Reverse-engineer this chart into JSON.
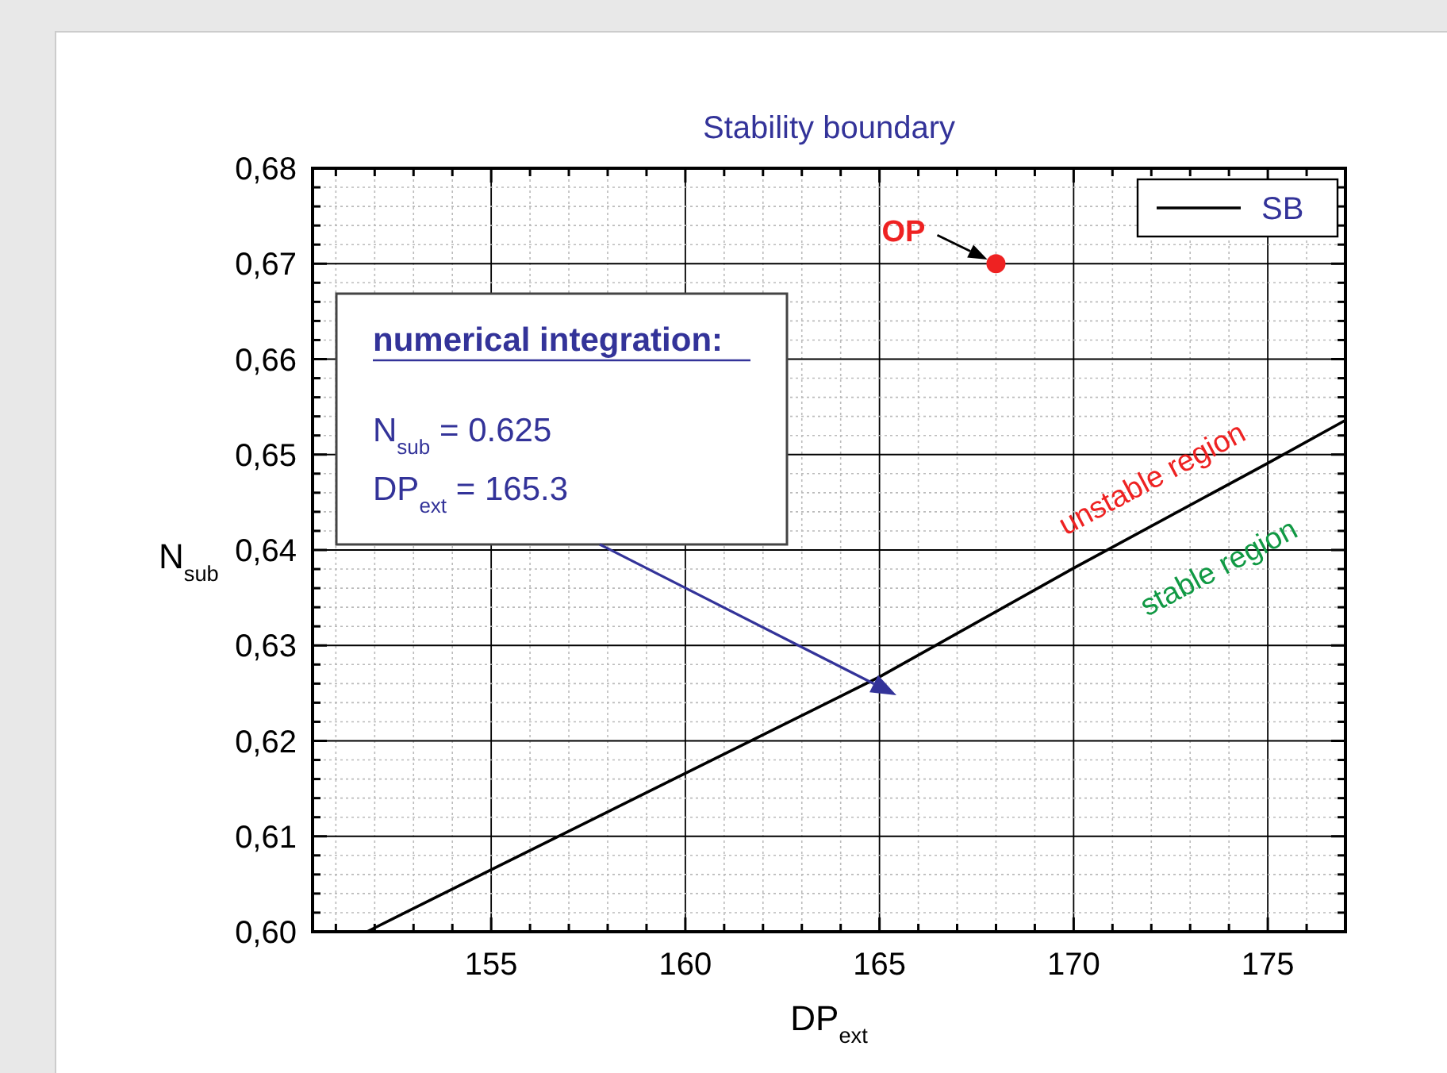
{
  "chart_data": {
    "type": "line",
    "title": "Stability boundary",
    "xlabel": "DP$_{ext}$",
    "ylabel": "N$_{sub}$",
    "xlim": [
      150.4,
      177
    ],
    "ylim": [
      0.6,
      0.68
    ],
    "xticks": [
      {
        "value": 151,
        "label": null
      },
      {
        "value": 152,
        "label": null
      },
      {
        "value": 153,
        "label": null
      },
      {
        "value": 154,
        "label": null
      },
      155,
      {
        "value": 156,
        "label": null
      },
      {
        "value": 157,
        "label": null
      },
      {
        "value": 158,
        "label": null
      },
      {
        "value": 159,
        "label": null
      },
      160,
      {
        "value": 161,
        "label": null
      },
      {
        "value": 162,
        "label": null
      },
      {
        "value": 163,
        "label": null
      },
      {
        "value": 164,
        "label": null
      },
      165,
      {
        "value": 166,
        "label": null
      },
      {
        "value": 167,
        "label": null
      },
      {
        "value": 168,
        "label": null
      },
      {
        "value": 169,
        "label": null
      },
      170,
      {
        "value": 171,
        "label": null
      },
      {
        "value": 172,
        "label": null
      },
      {
        "value": 173,
        "label": null
      },
      {
        "value": 174,
        "label": null
      },
      175,
      {
        "value": 176,
        "label": null
      },
      {
        "value": 177,
        "label": null
      }
    ],
    "yticks": [
      {
        "value": 0.6,
        "label": "0,60"
      },
      {
        "value": 0.602,
        "label": null
      },
      {
        "value": 0.604,
        "label": null
      },
      {
        "value": 0.606,
        "label": null
      },
      {
        "value": 0.608,
        "label": null
      },
      {
        "value": 0.61,
        "label": "0,61"
      },
      {
        "value": 0.612,
        "label": null
      },
      {
        "value": 0.614,
        "label": null
      },
      {
        "value": 0.616,
        "label": null
      },
      {
        "value": 0.618,
        "label": null
      },
      {
        "value": 0.62,
        "label": "0,62"
      },
      {
        "value": 0.622,
        "label": null
      },
      {
        "value": 0.624,
        "label": null
      },
      {
        "value": 0.626,
        "label": null
      },
      {
        "value": 0.628,
        "label": null
      },
      {
        "value": 0.63,
        "label": "0,63"
      },
      {
        "value": 0.632,
        "label": null
      },
      {
        "value": 0.634,
        "label": null
      },
      {
        "value": 0.636,
        "label": null
      },
      {
        "value": 0.638,
        "label": null
      },
      {
        "value": 0.64,
        "label": "0,64"
      },
      {
        "value": 0.642,
        "label": null
      },
      {
        "value": 0.644,
        "label": null
      },
      {
        "value": 0.646,
        "label": null
      },
      {
        "value": 0.648,
        "label": null
      },
      {
        "value": 0.65,
        "label": "0,65"
      },
      {
        "value": 0.652,
        "label": null
      },
      {
        "value": 0.654,
        "label": null
      },
      {
        "value": 0.656,
        "label": null
      },
      {
        "value": 0.658,
        "label": null
      },
      {
        "value": 0.66,
        "label": "0,66"
      },
      {
        "value": 0.662,
        "label": null
      },
      {
        "value": 0.664,
        "label": null
      },
      {
        "value": 0.666,
        "label": null
      },
      {
        "value": 0.668,
        "label": null
      },
      {
        "value": 0.67,
        "label": "0,67"
      },
      {
        "value": 0.672,
        "label": null
      },
      {
        "value": 0.674,
        "label": null
      },
      {
        "value": 0.676,
        "label": null
      },
      {
        "value": 0.678,
        "label": null
      },
      {
        "value": 0.68,
        "label": "0,68"
      }
    ],
    "grid": true,
    "legend": "top right",
    "series": [
      {
        "name": "SB",
        "color": "#000000",
        "line_style": "solid",
        "marker": "none",
        "x": [
          151.8,
          155,
          160,
          165,
          170,
          175,
          177
        ],
        "values": [
          0.6,
          0.6065,
          0.6166,
          0.6267,
          0.6381,
          0.6491,
          0.6536
        ]
      },
      {
        "color": "#ee2222",
        "type": "scatter",
        "marker": "circle",
        "x": [
          168
        ],
        "values": [
          0.67
        ]
      }
    ],
    "annotations": [
      "numerical integration:",
      "N$_{sub}$ = 0.625",
      "DP$_{ext}$ = 165.3",
      {
        "text": "OP",
        "x": 168,
        "y": 0.67
      },
      "unstable region",
      "stable region"
    ]
  }
}
